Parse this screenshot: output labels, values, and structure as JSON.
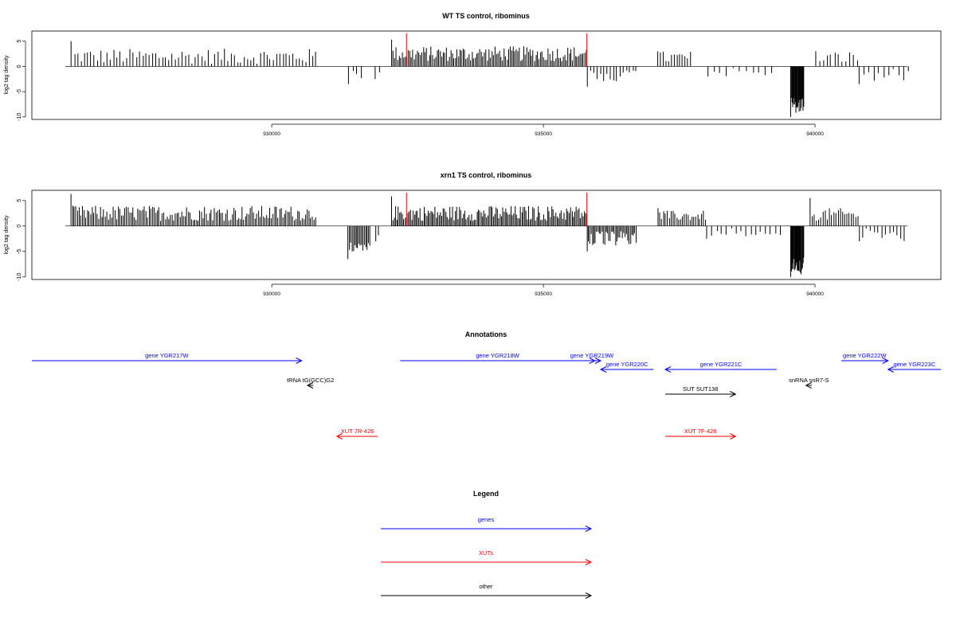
{
  "panels": [
    {
      "title": "WT TS control, ribominus",
      "ylabel": "log2 tag density",
      "xlim": [
        926200,
        941700
      ],
      "ylim": [
        -10.5,
        7
      ],
      "yticks": [
        5,
        0,
        -5,
        -10
      ],
      "xticks": [
        930000,
        935000,
        940000
      ],
      "markers": [
        932480,
        935800
      ],
      "segments": [
        {
          "start": 926300,
          "end": 930800,
          "sign": 1,
          "lo": 0.5,
          "hi": 3.5,
          "step": 60,
          "peak": 5.0
        },
        {
          "start": 931400,
          "end": 931700,
          "sign": -1,
          "lo": 0.5,
          "hi": 3.5,
          "step": 80,
          "peak": 3.5
        },
        {
          "start": 931900,
          "end": 932000,
          "sign": -1,
          "lo": 1,
          "hi": 2.5,
          "step": 80,
          "peak": 2.5
        },
        {
          "start": 932200,
          "end": 935800,
          "sign": 1,
          "lo": 1,
          "hi": 4,
          "step": 28,
          "peak": 5.3
        },
        {
          "start": 935800,
          "end": 936700,
          "sign": -1,
          "lo": 0.5,
          "hi": 3,
          "step": 60,
          "peak": 4.0
        },
        {
          "start": 937100,
          "end": 937700,
          "sign": 1,
          "lo": 0.5,
          "hi": 3,
          "step": 50,
          "peak": 3.0
        },
        {
          "start": 938000,
          "end": 939200,
          "sign": -1,
          "lo": 0.3,
          "hi": 2,
          "step": 120,
          "peak": 2.0
        },
        {
          "start": 939550,
          "end": 939800,
          "sign": -1,
          "lo": 6,
          "hi": 9.5,
          "step": 12,
          "peak": 10.0
        },
        {
          "start": 940000,
          "end": 940800,
          "sign": 1,
          "lo": 0.5,
          "hi": 3,
          "step": 70,
          "peak": 3.0
        },
        {
          "start": 940800,
          "end": 941700,
          "sign": -1,
          "lo": 0.5,
          "hi": 3,
          "step": 90,
          "peak": 3.5
        }
      ]
    },
    {
      "title": "xrn1 TS control, ribominus",
      "ylabel": "log2 tag density",
      "xlim": [
        926200,
        941700
      ],
      "ylim": [
        -10.5,
        7
      ],
      "yticks": [
        5,
        0,
        -5,
        -10
      ],
      "xticks": [
        930000,
        935000,
        940000
      ],
      "markers": [
        932480,
        935800
      ],
      "segments": [
        {
          "start": 926300,
          "end": 930800,
          "sign": 1,
          "lo": 1,
          "hi": 4,
          "step": 30,
          "peak": 6.3
        },
        {
          "start": 931400,
          "end": 931800,
          "sign": -1,
          "lo": 2,
          "hi": 5,
          "step": 25,
          "peak": 6.5
        },
        {
          "start": 931900,
          "end": 932000,
          "sign": -1,
          "lo": 1,
          "hi": 3,
          "step": 60,
          "peak": 3.0
        },
        {
          "start": 932200,
          "end": 935800,
          "sign": 1,
          "lo": 1,
          "hi": 4,
          "step": 25,
          "peak": 5.8
        },
        {
          "start": 935800,
          "end": 936700,
          "sign": -1,
          "lo": 1,
          "hi": 4,
          "step": 25,
          "peak": 5.0
        },
        {
          "start": 937100,
          "end": 938000,
          "sign": 1,
          "lo": 1,
          "hi": 3,
          "step": 35,
          "peak": 3.5
        },
        {
          "start": 938000,
          "end": 939400,
          "sign": -1,
          "lo": 0.3,
          "hi": 2,
          "step": 90,
          "peak": 2.5
        },
        {
          "start": 939550,
          "end": 939800,
          "sign": -1,
          "lo": 6,
          "hi": 9.5,
          "step": 12,
          "peak": 10.0
        },
        {
          "start": 939900,
          "end": 940800,
          "sign": 1,
          "lo": 1,
          "hi": 3.5,
          "step": 40,
          "peak": 5.5
        },
        {
          "start": 940800,
          "end": 941700,
          "sign": -1,
          "lo": 0.5,
          "hi": 3,
          "step": 70,
          "peak": 3.0
        }
      ]
    }
  ],
  "annotations": {
    "title": "Annotations",
    "features": [
      {
        "label": "gene YGR217W",
        "class": "gene",
        "start": 926200,
        "end": 930800,
        "strand": "+",
        "row": 0
      },
      {
        "label": "gene YGR218W",
        "class": "gene",
        "start": 932480,
        "end": 935800,
        "strand": "+",
        "row": 0
      },
      {
        "label": "gene YGR219W",
        "class": "gene",
        "start": 935600,
        "end": 935900,
        "strand": "+",
        "row": 0
      },
      {
        "label": "gene YGR220C",
        "class": "gene",
        "start": 935900,
        "end": 936800,
        "strand": "-",
        "row": 1
      },
      {
        "label": "gene YGR221C",
        "class": "gene",
        "start": 937000,
        "end": 938900,
        "strand": "-",
        "row": 1
      },
      {
        "label": "gene YGR222W",
        "class": "gene",
        "start": 940000,
        "end": 940800,
        "strand": "+",
        "row": 0
      },
      {
        "label": "gene YGR223C",
        "class": "gene",
        "start": 940800,
        "end": 941700,
        "strand": "-",
        "row": 1
      },
      {
        "label": "tRNA tG(GCC)G2",
        "class": "other",
        "start": 930900,
        "end": 931000,
        "strand": "-",
        "row": 2
      },
      {
        "label": "snRNA snR7-S",
        "class": "other",
        "start": 939400,
        "end": 939500,
        "strand": "-",
        "row": 2
      },
      {
        "label": "SUT SUT138",
        "class": "other",
        "start": 937000,
        "end": 938200,
        "strand": "+",
        "row": 3
      },
      {
        "label": "XUT 7R-426",
        "class": "xut",
        "start": 931400,
        "end": 932100,
        "strand": "-",
        "row": 4
      },
      {
        "label": "XUT 7F-426",
        "class": "xut",
        "start": 937000,
        "end": 938200,
        "strand": "+",
        "row": 4
      }
    ]
  },
  "legend": {
    "title": "Legend",
    "items": [
      {
        "label": "genes",
        "class": "gene"
      },
      {
        "label": "XUTs",
        "class": "xut"
      },
      {
        "label": "other",
        "class": "other"
      }
    ]
  },
  "colors": {
    "gene": "#0000ff",
    "xut": "#ff0000",
    "other": "#000000",
    "marker": "#ff0000"
  }
}
